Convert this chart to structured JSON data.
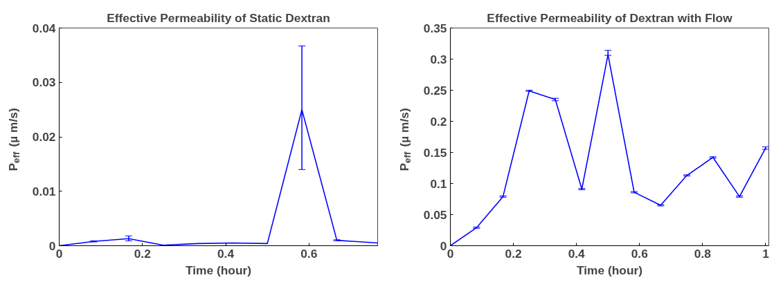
{
  "chart_data": [
    {
      "type": "line",
      "title": "Effective Permeability of Static Dextran",
      "xlabel": "Time (hour)",
      "ylabel": "P$_{eff}$ (µ m/s)",
      "x": [
        0,
        0.083,
        0.167,
        0.25,
        0.333,
        0.417,
        0.5,
        0.583,
        0.667,
        0.765
      ],
      "series": [
        {
          "color": "#0000ff",
          "values": [
            0,
            0.0008,
            0.0013,
            0.0001,
            0.0004,
            0.0005,
            0.0004,
            0.025,
            0.001,
            0.0005
          ],
          "errors": [
            null,
            0.0001,
            [
              0.0009,
              0.0018
            ],
            null,
            null,
            null,
            null,
            [
              0.014,
              0.0367
            ],
            0.0001,
            null
          ]
        }
      ],
      "xlim": [
        0,
        0.765
      ],
      "ylim": [
        0,
        0.04
      ],
      "xticks": [
        0,
        0.2,
        0.4,
        0.6
      ],
      "yticks": [
        0,
        0.01,
        0.02,
        0.03,
        0.04
      ],
      "grid": false,
      "marker": "none",
      "line_style": "solid"
    },
    {
      "type": "line",
      "title": "Effective Permeability of Dextran with Flow",
      "xlabel": "Time (hour)",
      "ylabel": "P$_{eff}$ (µ m/s)",
      "x": [
        0,
        0.083,
        0.167,
        0.25,
        0.333,
        0.417,
        0.5,
        0.583,
        0.667,
        0.75,
        0.833,
        0.917,
        1.0
      ],
      "series": [
        {
          "color": "#0000ff",
          "values": [
            0,
            0.029,
            0.079,
            0.249,
            0.235,
            0.091,
            0.307,
            0.086,
            0.065,
            0.113,
            0.142,
            0.079,
            0.157
          ],
          "errors": [
            null,
            0.001,
            0.001,
            0.001,
            0.002,
            0.001,
            [
              0.306,
              0.314
            ],
            0.001,
            0.001,
            0.001,
            0.001,
            0.001,
            0.002
          ]
        }
      ],
      "xlim": [
        0,
        1.01
      ],
      "ylim": [
        0,
        0.35
      ],
      "xticks": [
        0,
        0.2,
        0.4,
        0.6,
        0.8,
        1
      ],
      "yticks": [
        0,
        0.05,
        0.1,
        0.15,
        0.2,
        0.25,
        0.3,
        0.35
      ],
      "grid": false,
      "marker": "none",
      "line_style": "solid"
    }
  ]
}
